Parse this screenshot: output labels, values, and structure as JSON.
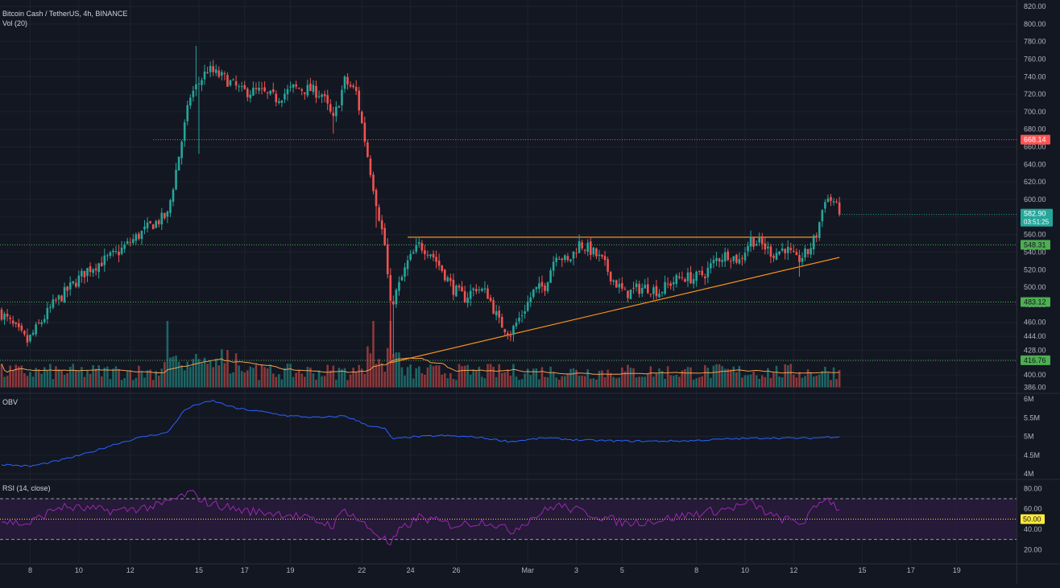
{
  "header": {
    "symbol_line": "Bitcoin Cash / TetherUS, 4h, BINANCE",
    "volume_label": "Vol (20)"
  },
  "panes": {
    "obv_label": "OBV",
    "rsi_label": "RSI (14, close)"
  },
  "colors": {
    "background": "#131722",
    "grid": "#1e222d",
    "up": "#26a69a",
    "down": "#ef5350",
    "up_volume": "#26a69a",
    "down_volume": "#ef5350",
    "volume_ma": "#f0a050",
    "obv_line": "#2962ff",
    "rsi_line": "#9c27b0",
    "rsi_band_fill": "#2a1b3d",
    "trendline": "#f7931a",
    "resistance_red": "#ff5252",
    "support_green": "#4caf50",
    "rsi_mid": "#ffeb3b",
    "price_tag": "#26a69a",
    "axis_text": "#b2b5be"
  },
  "chart_data": [
    {
      "type": "candlestick",
      "pane": "price",
      "title": "Bitcoin Cash / TetherUS, 4h, BINANCE",
      "ylim": [
        380,
        820
      ],
      "y_ticks": [
        "820.00",
        "800.00",
        "780.00",
        "760.00",
        "740.00",
        "720.00",
        "700.00",
        "680.00",
        "660.00",
        "640.00",
        "620.00",
        "600.00",
        "580.00",
        "560.00",
        "540.00",
        "520.00",
        "500.00",
        "480.00",
        "460.00",
        "444.00",
        "428.00",
        "416.00",
        "400.00",
        "386.00"
      ],
      "x_ticks": [
        "8",
        "10",
        "12",
        "15",
        "17",
        "19",
        "22",
        "24",
        "26",
        "Mar",
        "3",
        "5",
        "8",
        "10",
        "12",
        "15",
        "17",
        "19"
      ],
      "anchors": [
        {
          "bar": 0,
          "price": 470
        },
        {
          "bar": 9,
          "price": 438
        },
        {
          "bar": 18,
          "price": 480
        },
        {
          "bar": 30,
          "price": 520
        },
        {
          "bar": 40,
          "price": 538
        },
        {
          "bar": 52,
          "price": 570
        },
        {
          "bar": 58,
          "price": 582
        },
        {
          "bar": 62,
          "price": 650
        },
        {
          "bar": 66,
          "price": 718
        },
        {
          "bar": 72,
          "price": 748
        },
        {
          "bar": 78,
          "price": 738
        },
        {
          "bar": 84,
          "price": 723
        },
        {
          "bar": 90,
          "price": 723
        },
        {
          "bar": 96,
          "price": 715
        },
        {
          "bar": 102,
          "price": 727
        },
        {
          "bar": 108,
          "price": 725
        },
        {
          "bar": 112,
          "price": 720
        },
        {
          "bar": 116,
          "price": 690
        },
        {
          "bar": 120,
          "price": 735
        },
        {
          "bar": 124,
          "price": 722
        },
        {
          "bar": 128,
          "price": 650
        },
        {
          "bar": 131,
          "price": 598
        },
        {
          "bar": 134,
          "price": 548
        },
        {
          "bar": 136,
          "price": 478
        },
        {
          "bar": 139,
          "price": 502
        },
        {
          "bar": 142,
          "price": 528
        },
        {
          "bar": 146,
          "price": 548
        },
        {
          "bar": 150,
          "price": 540
        },
        {
          "bar": 154,
          "price": 520
        },
        {
          "bar": 158,
          "price": 498
        },
        {
          "bar": 162,
          "price": 488
        },
        {
          "bar": 166,
          "price": 500
        },
        {
          "bar": 170,
          "price": 492
        },
        {
          "bar": 174,
          "price": 460
        },
        {
          "bar": 178,
          "price": 448
        },
        {
          "bar": 182,
          "price": 470
        },
        {
          "bar": 186,
          "price": 495
        },
        {
          "bar": 190,
          "price": 502
        },
        {
          "bar": 194,
          "price": 540
        },
        {
          "bar": 198,
          "price": 528
        },
        {
          "bar": 202,
          "price": 550
        },
        {
          "bar": 206,
          "price": 542
        },
        {
          "bar": 210,
          "price": 530
        },
        {
          "bar": 214,
          "price": 508
        },
        {
          "bar": 218,
          "price": 492
        },
        {
          "bar": 222,
          "price": 498
        },
        {
          "bar": 226,
          "price": 500
        },
        {
          "bar": 230,
          "price": 495
        },
        {
          "bar": 234,
          "price": 505
        },
        {
          "bar": 238,
          "price": 512
        },
        {
          "bar": 242,
          "price": 510
        },
        {
          "bar": 246,
          "price": 516
        },
        {
          "bar": 250,
          "price": 532
        },
        {
          "bar": 254,
          "price": 538
        },
        {
          "bar": 258,
          "price": 530
        },
        {
          "bar": 262,
          "price": 555
        },
        {
          "bar": 266,
          "price": 548
        },
        {
          "bar": 270,
          "price": 538
        },
        {
          "bar": 274,
          "price": 545
        },
        {
          "bar": 278,
          "price": 530
        },
        {
          "bar": 282,
          "price": 540
        },
        {
          "bar": 285,
          "price": 560
        },
        {
          "bar": 288,
          "price": 602
        },
        {
          "bar": 291,
          "price": 598
        },
        {
          "bar": 293,
          "price": 582.9
        }
      ],
      "last_price": "582.90",
      "countdown": "03:51:25",
      "levels": [
        {
          "price": 668.14,
          "label": "668.14",
          "color": "#ff5252"
        },
        {
          "price": 548.31,
          "label": "548.31",
          "color": "#4caf50"
        },
        {
          "price": 483.12,
          "label": "483.12",
          "color": "#4caf50"
        },
        {
          "price": 416.76,
          "label": "416.76",
          "color": "#4caf50"
        }
      ],
      "trendlines": [
        {
          "from": {
            "bar": 142,
            "price": 557
          },
          "to": {
            "bar": 285,
            "price": 557
          }
        },
        {
          "from": {
            "bar": 136,
            "price": 414
          },
          "to": {
            "bar": 293,
            "price": 534
          }
        }
      ]
    },
    {
      "type": "line",
      "pane": "obv",
      "name": "OBV",
      "ylim": [
        4,
        6
      ],
      "y_ticks": [
        "6M",
        "5.5M",
        "5M",
        "4.5M",
        "4M"
      ],
      "points": [
        {
          "bar": 0,
          "value": 4.25
        },
        {
          "bar": 10,
          "value": 4.2
        },
        {
          "bar": 20,
          "value": 4.35
        },
        {
          "bar": 30,
          "value": 4.55
        },
        {
          "bar": 40,
          "value": 4.8
        },
        {
          "bar": 50,
          "value": 5.0
        },
        {
          "bar": 58,
          "value": 5.1
        },
        {
          "bar": 64,
          "value": 5.7
        },
        {
          "bar": 68,
          "value": 5.85
        },
        {
          "bar": 74,
          "value": 5.95
        },
        {
          "bar": 82,
          "value": 5.75
        },
        {
          "bar": 92,
          "value": 5.65
        },
        {
          "bar": 100,
          "value": 5.55
        },
        {
          "bar": 112,
          "value": 5.5
        },
        {
          "bar": 120,
          "value": 5.55
        },
        {
          "bar": 128,
          "value": 5.3
        },
        {
          "bar": 134,
          "value": 5.2
        },
        {
          "bar": 137,
          "value": 4.92
        },
        {
          "bar": 142,
          "value": 4.98
        },
        {
          "bar": 154,
          "value": 5.02
        },
        {
          "bar": 166,
          "value": 4.98
        },
        {
          "bar": 178,
          "value": 4.86
        },
        {
          "bar": 190,
          "value": 4.96
        },
        {
          "bar": 202,
          "value": 4.9
        },
        {
          "bar": 214,
          "value": 4.88
        },
        {
          "bar": 226,
          "value": 4.87
        },
        {
          "bar": 240,
          "value": 4.88
        },
        {
          "bar": 254,
          "value": 4.93
        },
        {
          "bar": 268,
          "value": 4.96
        },
        {
          "bar": 282,
          "value": 4.95
        },
        {
          "bar": 293,
          "value": 5.0
        }
      ]
    },
    {
      "type": "line",
      "pane": "rsi",
      "name": "RSI",
      "ylim": [
        10,
        85
      ],
      "y_ticks": [
        "80.00",
        "60.00",
        "40.00",
        "20.00"
      ],
      "bands": [
        70,
        30
      ],
      "mid_label": "50.00",
      "anchors": [
        {
          "bar": 0,
          "value": 48
        },
        {
          "bar": 9,
          "value": 45
        },
        {
          "bar": 20,
          "value": 62
        },
        {
          "bar": 40,
          "value": 58
        },
        {
          "bar": 55,
          "value": 63
        },
        {
          "bar": 66,
          "value": 76
        },
        {
          "bar": 72,
          "value": 66
        },
        {
          "bar": 85,
          "value": 58
        },
        {
          "bar": 100,
          "value": 55
        },
        {
          "bar": 116,
          "value": 44
        },
        {
          "bar": 120,
          "value": 60
        },
        {
          "bar": 128,
          "value": 42
        },
        {
          "bar": 134,
          "value": 30
        },
        {
          "bar": 136,
          "value": 24
        },
        {
          "bar": 139,
          "value": 38
        },
        {
          "bar": 146,
          "value": 52
        },
        {
          "bar": 158,
          "value": 44
        },
        {
          "bar": 170,
          "value": 48
        },
        {
          "bar": 178,
          "value": 38
        },
        {
          "bar": 186,
          "value": 52
        },
        {
          "bar": 194,
          "value": 64
        },
        {
          "bar": 206,
          "value": 55
        },
        {
          "bar": 218,
          "value": 46
        },
        {
          "bar": 230,
          "value": 49
        },
        {
          "bar": 242,
          "value": 55
        },
        {
          "bar": 254,
          "value": 60
        },
        {
          "bar": 262,
          "value": 66
        },
        {
          "bar": 270,
          "value": 52
        },
        {
          "bar": 280,
          "value": 46
        },
        {
          "bar": 288,
          "value": 72
        },
        {
          "bar": 293,
          "value": 60
        }
      ]
    }
  ]
}
